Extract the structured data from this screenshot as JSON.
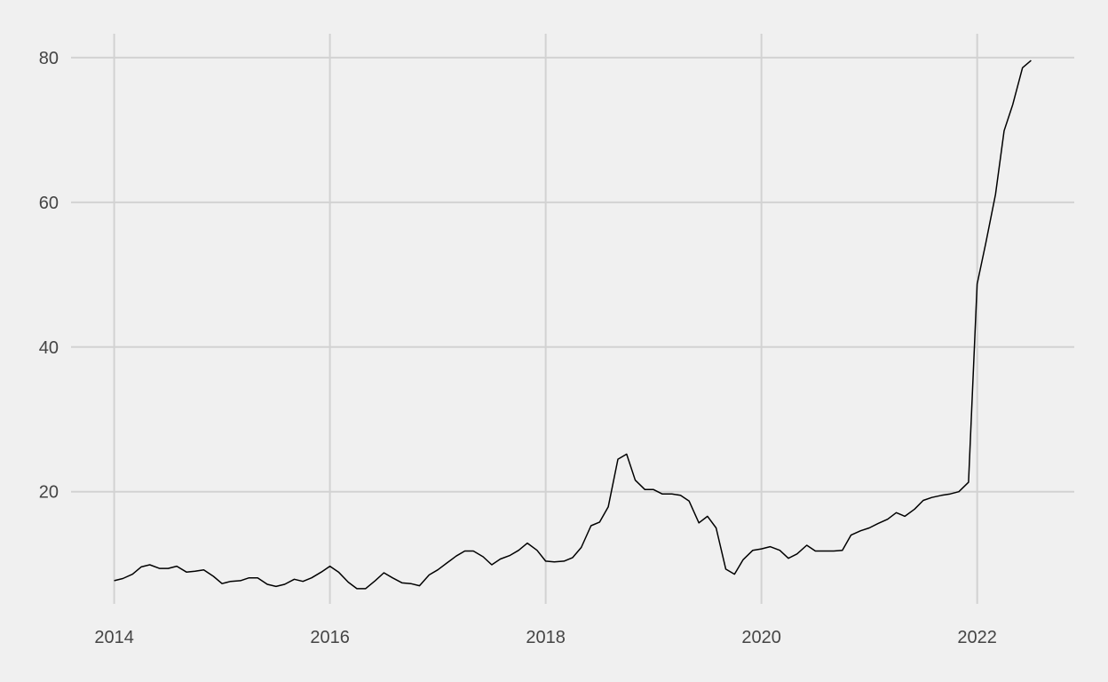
{
  "chart_data": {
    "type": "line",
    "title": "",
    "xlabel": "",
    "ylabel": "",
    "grid": true,
    "legend": "none",
    "xlim": [
      2013.6,
      2022.9
    ],
    "ylim": [
      4.5,
      83.3
    ],
    "x_ticks": [
      2014,
      2016,
      2018,
      2020,
      2022
    ],
    "x_tick_labels": [
      "2014",
      "2016",
      "2018",
      "2020",
      "2022"
    ],
    "y_ticks": [
      20,
      40,
      60,
      80
    ],
    "y_tick_labels": [
      "20",
      "40",
      "60",
      "80"
    ],
    "series": [
      {
        "color": "#000000",
        "x": [
          2014.0,
          2014.08,
          2014.17,
          2014.25,
          2014.33,
          2014.42,
          2014.5,
          2014.58,
          2014.67,
          2014.75,
          2014.83,
          2014.92,
          2015.0,
          2015.08,
          2015.17,
          2015.25,
          2015.33,
          2015.42,
          2015.5,
          2015.58,
          2015.67,
          2015.75,
          2015.83,
          2015.92,
          2016.0,
          2016.08,
          2016.17,
          2016.25,
          2016.33,
          2016.42,
          2016.5,
          2016.58,
          2016.67,
          2016.75,
          2016.83,
          2016.92,
          2017.0,
          2017.08,
          2017.17,
          2017.25,
          2017.33,
          2017.42,
          2017.5,
          2017.58,
          2017.67,
          2017.75,
          2017.83,
          2017.92,
          2018.0,
          2018.08,
          2018.17,
          2018.25,
          2018.33,
          2018.42,
          2018.5,
          2018.58,
          2018.67,
          2018.75,
          2018.83,
          2018.92,
          2019.0,
          2019.08,
          2019.17,
          2019.25,
          2019.33,
          2019.42,
          2019.5,
          2019.58,
          2019.67,
          2019.75,
          2019.83,
          2019.92,
          2020.0,
          2020.08,
          2020.17,
          2020.25,
          2020.33,
          2020.42,
          2020.5,
          2020.58,
          2020.67,
          2020.75,
          2020.83,
          2020.92,
          2021.0,
          2021.08,
          2021.17,
          2021.25,
          2021.33,
          2021.42,
          2021.5,
          2021.58,
          2021.67,
          2021.75,
          2021.83,
          2021.92,
          2022.0,
          2022.08,
          2022.17,
          2022.25,
          2022.33,
          2022.42,
          2022.5
        ],
        "y": [
          7.7,
          8.0,
          8.6,
          9.6,
          9.9,
          9.4,
          9.4,
          9.7,
          8.9,
          9.0,
          9.2,
          8.3,
          7.3,
          7.6,
          7.7,
          8.1,
          8.1,
          7.2,
          6.9,
          7.2,
          7.9,
          7.6,
          8.1,
          8.9,
          9.7,
          8.9,
          7.5,
          6.6,
          6.6,
          7.7,
          8.8,
          8.1,
          7.4,
          7.3,
          7.0,
          8.5,
          9.2,
          10.1,
          11.1,
          11.8,
          11.8,
          11.0,
          9.9,
          10.7,
          11.2,
          11.9,
          12.9,
          11.9,
          10.4,
          10.3,
          10.4,
          10.9,
          12.3,
          15.3,
          15.8,
          17.9,
          24.5,
          25.2,
          21.6,
          20.3,
          20.3,
          19.7,
          19.7,
          19.5,
          18.7,
          15.7,
          16.6,
          15.0,
          9.3,
          8.6,
          10.6,
          11.9,
          12.1,
          12.4,
          11.9,
          10.8,
          11.4,
          12.6,
          11.8,
          11.8,
          11.8,
          11.9,
          14.0,
          14.6,
          15.0,
          15.6,
          16.2,
          17.1,
          16.6,
          17.6,
          18.8,
          19.2,
          19.5,
          19.7,
          20.0,
          21.3,
          48.7,
          54.4,
          61.1,
          69.9,
          73.5,
          78.6,
          79.6
        ]
      }
    ]
  }
}
